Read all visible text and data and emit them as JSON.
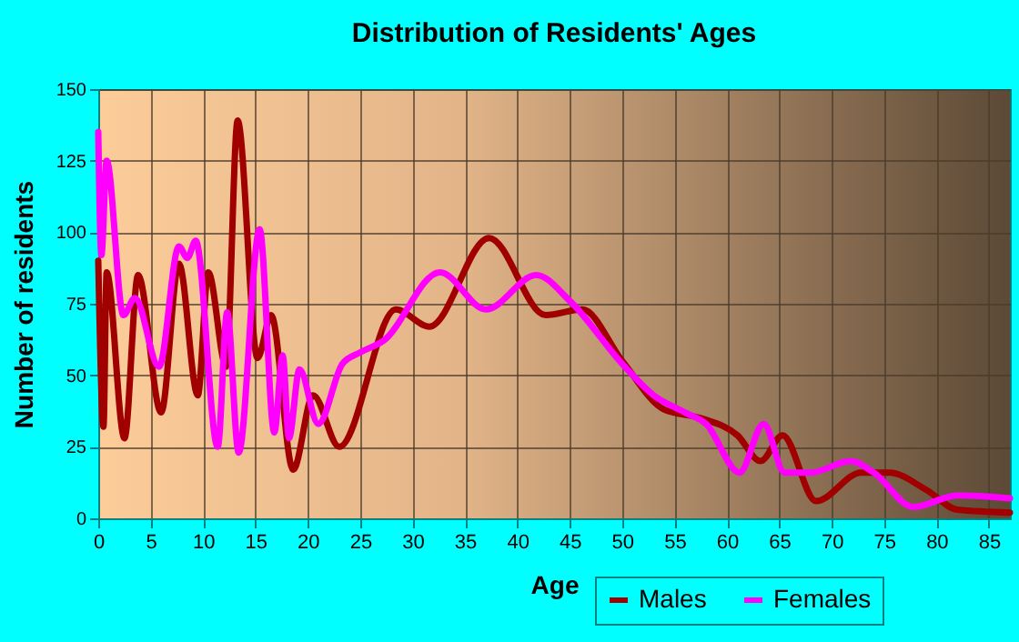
{
  "chart_data": {
    "type": "line",
    "title": "Distribution of Residents' Ages",
    "xlabel": "Age",
    "ylabel": "Number of residents",
    "xlim": [
      0,
      87
    ],
    "xticks": [
      0,
      5,
      10,
      15,
      20,
      25,
      30,
      35,
      40,
      45,
      50,
      55,
      60,
      65,
      70,
      75,
      80,
      85
    ],
    "ylim": [
      0,
      150
    ],
    "yticks": [
      0,
      25,
      50,
      75,
      100,
      125,
      150
    ],
    "grid": true,
    "legend": "bottom right",
    "marker": "none",
    "line_style": "solid",
    "series": [
      {
        "name": "Males",
        "color": "#a00000",
        "x": [
          0,
          0.5,
          0.8,
          2.5,
          3.8,
          6,
          7.7,
          9.5,
          10.5,
          12.2,
          13.3,
          15.2,
          16.5,
          18.6,
          20.5,
          23,
          28.4,
          31.6,
          37.3,
          42.7,
          46.2,
          50,
          54,
          57.5,
          61,
          63.2,
          65.3,
          68.5,
          72.8,
          75.5,
          79,
          82,
          87
        ],
        "values": [
          90,
          32,
          86,
          28,
          85,
          37,
          89,
          43,
          86,
          53,
          139,
          56,
          71,
          17,
          43,
          25,
          73,
          67,
          98,
          71,
          73,
          55,
          38,
          35,
          29,
          20,
          29,
          6,
          16,
          16,
          10,
          3,
          2
        ]
      },
      {
        "name": "Females",
        "color": "#ff00ff",
        "x": [
          0,
          0.3,
          0.8,
          2.4,
          3.5,
          5.8,
          7.7,
          8.5,
          9.3,
          11.4,
          12.3,
          13.4,
          15.4,
          16.8,
          17.6,
          18.2,
          19.2,
          21,
          23.3,
          25,
          27.2,
          32.6,
          37,
          41.8,
          45,
          50,
          53,
          56,
          58,
          61.2,
          63.5,
          65.5,
          68,
          71.8,
          74,
          77.8,
          82,
          87
        ],
        "values": [
          135,
          92,
          125,
          71,
          77,
          53,
          95,
          91,
          97,
          25,
          72,
          23,
          101,
          30,
          57,
          28,
          52,
          33,
          54,
          58,
          62,
          86,
          73,
          85,
          76,
          54,
          43,
          37,
          33,
          16,
          33,
          16,
          16,
          20,
          16,
          4,
          8,
          7
        ]
      }
    ]
  }
}
